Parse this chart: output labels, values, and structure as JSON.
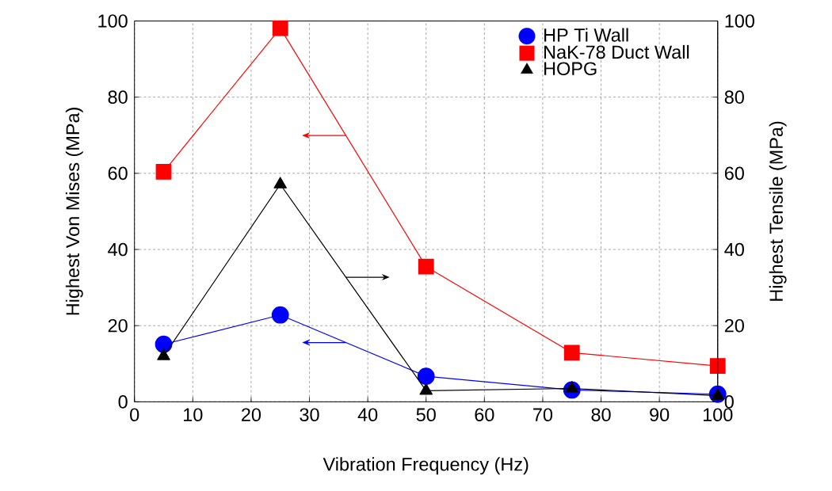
{
  "chart_data": {
    "type": "line",
    "xlabel": "Vibration Frequency (Hz)",
    "ylabel": "Highest Von Mises (MPa)",
    "y2label": "Highest Tensile (MPa)",
    "x": [
      5,
      25,
      50,
      75,
      100
    ],
    "series": [
      {
        "name": "HP Ti Wall",
        "color": "#0000ff",
        "marker": "circle",
        "values": [
          15.1,
          22.8,
          6.7,
          3.1,
          2.0
        ]
      },
      {
        "name": "NaK-78 Duct Wall",
        "color": "#ff0000",
        "marker": "square",
        "values": [
          60.4,
          98.1,
          35.5,
          12.9,
          9.4
        ]
      },
      {
        "name": "HOPG",
        "color": "#000000",
        "marker": "triangle",
        "axis": "y2",
        "values": [
          12.0,
          57.1,
          2.9,
          3.5,
          1.6
        ]
      }
    ],
    "xlim": [
      0,
      100
    ],
    "xticks": [
      0,
      10,
      20,
      30,
      40,
      50,
      60,
      70,
      80,
      90,
      100
    ],
    "ylim": [
      0,
      100
    ],
    "yticks": [
      0,
      20,
      40,
      60,
      80,
      100
    ],
    "y2lim": [
      0,
      100
    ],
    "y2ticks": [
      0,
      20,
      40,
      60,
      80,
      100
    ],
    "grid": true,
    "legend": "top right",
    "line_style": "solid"
  }
}
